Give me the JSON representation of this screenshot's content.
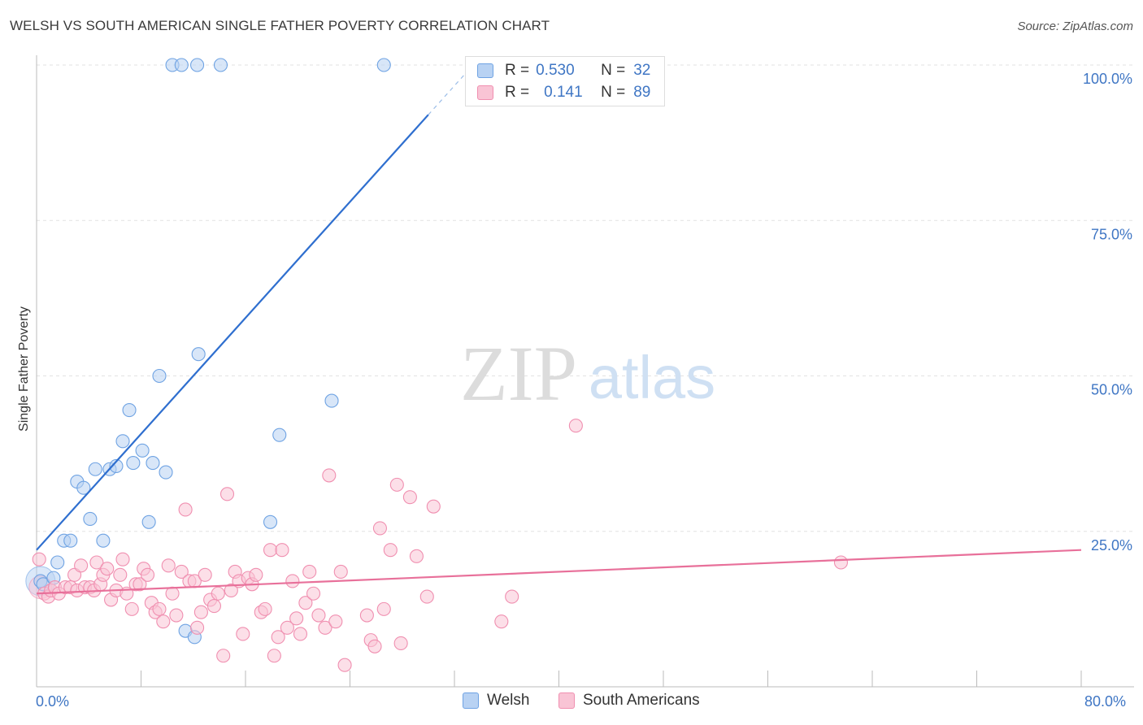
{
  "chart_data": {
    "type": "scatter",
    "title": "WELSH VS SOUTH AMERICAN SINGLE FATHER POVERTY CORRELATION CHART",
    "source": "Source: ZipAtlas.com",
    "xlabel": "",
    "ylabel": "Single Father Poverty",
    "xlim": [
      0,
      80
    ],
    "ylim": [
      0,
      100
    ],
    "x_tick_labels": [
      "0.0%",
      "80.0%"
    ],
    "y_tick_labels": [
      "25.0%",
      "50.0%",
      "75.0%",
      "100.0%"
    ],
    "y_ticks": [
      25,
      50,
      75,
      100
    ],
    "watermark": {
      "zip": "ZIP",
      "atlas": "atlas"
    },
    "stats": [
      {
        "r_label": "R =",
        "r_value": "0.530",
        "n_label": "N =",
        "n_value": "32"
      },
      {
        "r_label": "R =",
        "r_value": "0.141",
        "n_label": "N =",
        "n_value": "89"
      }
    ],
    "series": [
      {
        "name": "Welsh",
        "color": "#6fa3e3",
        "fill": "#b8d2f3",
        "trend_color": "#2f6fcf",
        "trend": {
          "x1": 0,
          "y1": 22,
          "x2": 30,
          "y2": 92,
          "dash_x2": 33,
          "dash_y2": 99
        },
        "points": [
          [
            0.3,
            17
          ],
          [
            0.5,
            16.5
          ],
          [
            1.3,
            17.5
          ],
          [
            1.6,
            20
          ],
          [
            2.1,
            23.5
          ],
          [
            2.6,
            23.5
          ],
          [
            3.1,
            33
          ],
          [
            3.6,
            32
          ],
          [
            4.1,
            27
          ],
          [
            4.5,
            35
          ],
          [
            5.1,
            23.5
          ],
          [
            5.6,
            35
          ],
          [
            6.1,
            35.5
          ],
          [
            6.6,
            39.5
          ],
          [
            7.1,
            44.5
          ],
          [
            7.4,
            36
          ],
          [
            8.1,
            38
          ],
          [
            8.6,
            26.5
          ],
          [
            8.9,
            36
          ],
          [
            9.4,
            50
          ],
          [
            9.9,
            34.5
          ],
          [
            10.4,
            100
          ],
          [
            11.1,
            100
          ],
          [
            11.4,
            9
          ],
          [
            12.1,
            8
          ],
          [
            12.3,
            100
          ],
          [
            12.4,
            53.5
          ],
          [
            14.1,
            100
          ],
          [
            17.9,
            26.5
          ],
          [
            18.6,
            40.5
          ],
          [
            22.6,
            46
          ],
          [
            26.6,
            100
          ]
        ]
      },
      {
        "name": "South Americans",
        "color": "#f08fb0",
        "fill": "#f9c4d5",
        "trend_color": "#e8709a",
        "trend": {
          "x1": 0,
          "y1": 15,
          "x2": 80,
          "y2": 22
        },
        "points": [
          [
            0.2,
            20.5
          ],
          [
            0.6,
            15
          ],
          [
            0.9,
            14.5
          ],
          [
            1.1,
            15.5
          ],
          [
            1.4,
            16
          ],
          [
            1.7,
            15
          ],
          [
            2.2,
            16
          ],
          [
            2.6,
            16
          ],
          [
            2.9,
            18
          ],
          [
            3.1,
            15.5
          ],
          [
            3.4,
            19.5
          ],
          [
            3.7,
            16
          ],
          [
            4.1,
            16
          ],
          [
            4.4,
            15.5
          ],
          [
            4.6,
            20
          ],
          [
            4.9,
            16.5
          ],
          [
            5.1,
            18
          ],
          [
            5.4,
            19
          ],
          [
            5.7,
            14
          ],
          [
            6.1,
            15.5
          ],
          [
            6.4,
            18
          ],
          [
            6.6,
            20.5
          ],
          [
            6.9,
            15
          ],
          [
            7.3,
            12.5
          ],
          [
            7.6,
            16.5
          ],
          [
            7.9,
            16.5
          ],
          [
            8.2,
            19
          ],
          [
            8.5,
            18
          ],
          [
            8.8,
            13.5
          ],
          [
            9.1,
            12
          ],
          [
            9.4,
            12.5
          ],
          [
            9.7,
            10.5
          ],
          [
            10.1,
            19.5
          ],
          [
            10.4,
            15
          ],
          [
            10.7,
            11.5
          ],
          [
            11.1,
            18.5
          ],
          [
            11.4,
            28.5
          ],
          [
            11.7,
            17
          ],
          [
            12.1,
            17
          ],
          [
            12.3,
            9.5
          ],
          [
            12.6,
            12
          ],
          [
            12.9,
            18
          ],
          [
            13.3,
            14
          ],
          [
            13.6,
            13
          ],
          [
            13.9,
            15
          ],
          [
            14.3,
            5
          ],
          [
            14.6,
            31
          ],
          [
            14.9,
            15.5
          ],
          [
            15.2,
            18.5
          ],
          [
            15.5,
            17
          ],
          [
            15.8,
            8.5
          ],
          [
            16.2,
            17.5
          ],
          [
            16.5,
            16.5
          ],
          [
            16.8,
            18
          ],
          [
            17.2,
            12
          ],
          [
            17.5,
            12.5
          ],
          [
            17.9,
            22
          ],
          [
            18.2,
            5
          ],
          [
            18.5,
            8
          ],
          [
            18.8,
            22
          ],
          [
            19.2,
            9.5
          ],
          [
            19.6,
            17
          ],
          [
            19.9,
            11
          ],
          [
            20.2,
            8.5
          ],
          [
            20.6,
            13.5
          ],
          [
            20.9,
            18.5
          ],
          [
            21.2,
            15
          ],
          [
            21.6,
            11.5
          ],
          [
            22.1,
            9.5
          ],
          [
            22.4,
            34
          ],
          [
            22.9,
            10.5
          ],
          [
            23.3,
            18.5
          ],
          [
            23.6,
            3.5
          ],
          [
            25.3,
            11.5
          ],
          [
            25.6,
            7.5
          ],
          [
            25.9,
            6.5
          ],
          [
            26.3,
            25.5
          ],
          [
            26.6,
            12.5
          ],
          [
            27.1,
            22
          ],
          [
            27.6,
            32.5
          ],
          [
            27.9,
            7
          ],
          [
            28.6,
            30.5
          ],
          [
            29.1,
            21
          ],
          [
            29.9,
            14.5
          ],
          [
            30.4,
            29
          ],
          [
            35.6,
            10.5
          ],
          [
            36.4,
            14.5
          ],
          [
            41.3,
            42
          ],
          [
            61.6,
            20
          ]
        ]
      }
    ]
  },
  "legend": {
    "welsh": "Welsh",
    "south": "South Americans"
  }
}
